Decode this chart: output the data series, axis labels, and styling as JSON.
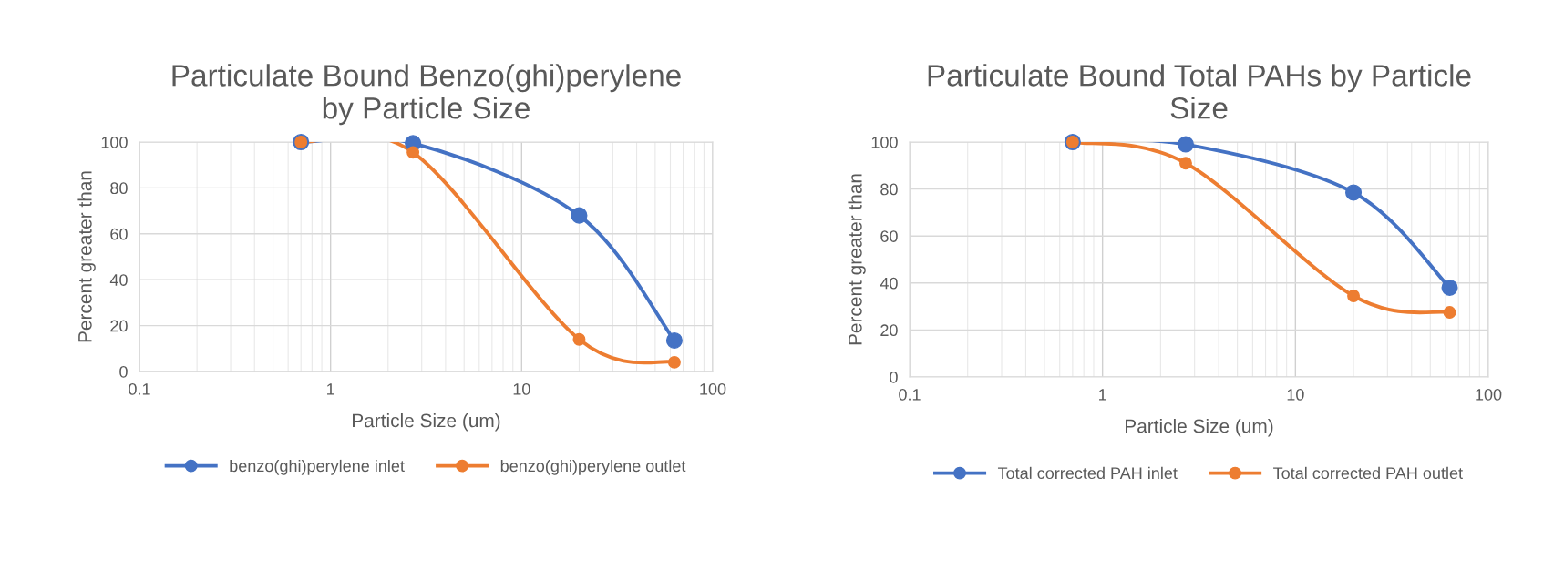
{
  "chart_data": [
    {
      "type": "line",
      "title": "Particulate Bound Benzo(ghi)perylene by Particle Size",
      "xlabel": "Particle Size (um)",
      "ylabel": "Percent greater than",
      "log": "x",
      "xlim": [
        0.1,
        100
      ],
      "xticks": [
        0.1,
        1,
        10,
        100
      ],
      "ylim": [
        0,
        100
      ],
      "yticks": [
        0,
        20,
        40,
        60,
        80,
        100
      ],
      "grid": true,
      "legend": "bottom",
      "marker": "circle",
      "line_style": "solid",
      "series": [
        {
          "name": "benzo(ghi)perylene inlet",
          "color": "#4472c4",
          "x": [
            0.7,
            2.7,
            20,
            63
          ],
          "values": [
            100,
            99.5,
            68,
            13.5
          ]
        },
        {
          "name": "benzo(ghi)perylene outlet",
          "color": "#ed7d31",
          "x": [
            0.7,
            2.7,
            20,
            63
          ],
          "values": [
            100,
            95.5,
            14,
            4
          ]
        }
      ]
    },
    {
      "type": "line",
      "title": "Particulate Bound Total PAHs by Particle Size",
      "xlabel": "Particle Size (um)",
      "ylabel": "Percent greater than",
      "log": "x",
      "xlim": [
        0.1,
        100
      ],
      "xticks": [
        0.1,
        1,
        10,
        100
      ],
      "ylim": [
        0,
        100
      ],
      "yticks": [
        0,
        20,
        40,
        60,
        80,
        100
      ],
      "grid": true,
      "legend": "bottom",
      "marker": "circle",
      "line_style": "solid",
      "series": [
        {
          "name": "Total corrected PAH inlet",
          "color": "#4472c4",
          "x": [
            0.7,
            2.7,
            20,
            63
          ],
          "values": [
            100,
            99,
            78.5,
            38
          ]
        },
        {
          "name": "Total corrected PAH outlet",
          "color": "#ed7d31",
          "x": [
            0.7,
            2.7,
            20,
            63
          ],
          "values": [
            100,
            91,
            34.5,
            27.5
          ]
        }
      ]
    }
  ]
}
